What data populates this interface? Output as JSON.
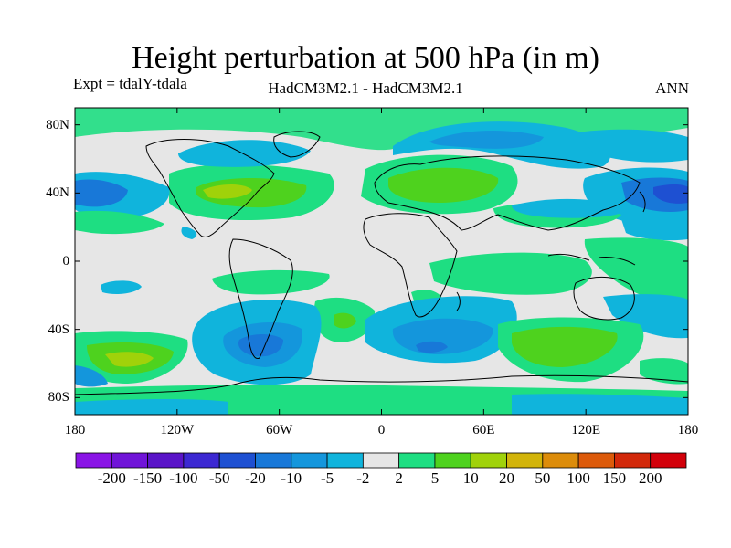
{
  "title": "Height perturbation at 500 hPa (in m)",
  "subtitle_left": "Expt = tdalY-tdala",
  "subtitle_center": "HadCM3M2.1 - HadCM3M2.1",
  "subtitle_right": "ANN",
  "map": {
    "lon_ticks": [
      "180",
      "120W",
      "60W",
      "0",
      "60E",
      "120E",
      "180"
    ],
    "lat_ticks": [
      "80N",
      "40N",
      "0",
      "40S",
      "80S"
    ],
    "background_color": "#e6e6e6"
  },
  "colorbar": {
    "labels": [
      "-200",
      "-150",
      "-100",
      "-50",
      "-20",
      "-10",
      "-5",
      "-2",
      "2",
      "5",
      "10",
      "20",
      "50",
      "100",
      "150",
      "200"
    ],
    "colors": [
      "#8a14e6",
      "#7014d8",
      "#5a14c8",
      "#3c28d2",
      "#1e50d2",
      "#1878d8",
      "#1496dc",
      "#10b4dc",
      "#e6e6e6",
      "#1ede82",
      "#4ed21e",
      "#a0d20a",
      "#d2b40a",
      "#dc8c0a",
      "#dc5a0a",
      "#d2280a",
      "#d2000a"
    ]
  }
}
